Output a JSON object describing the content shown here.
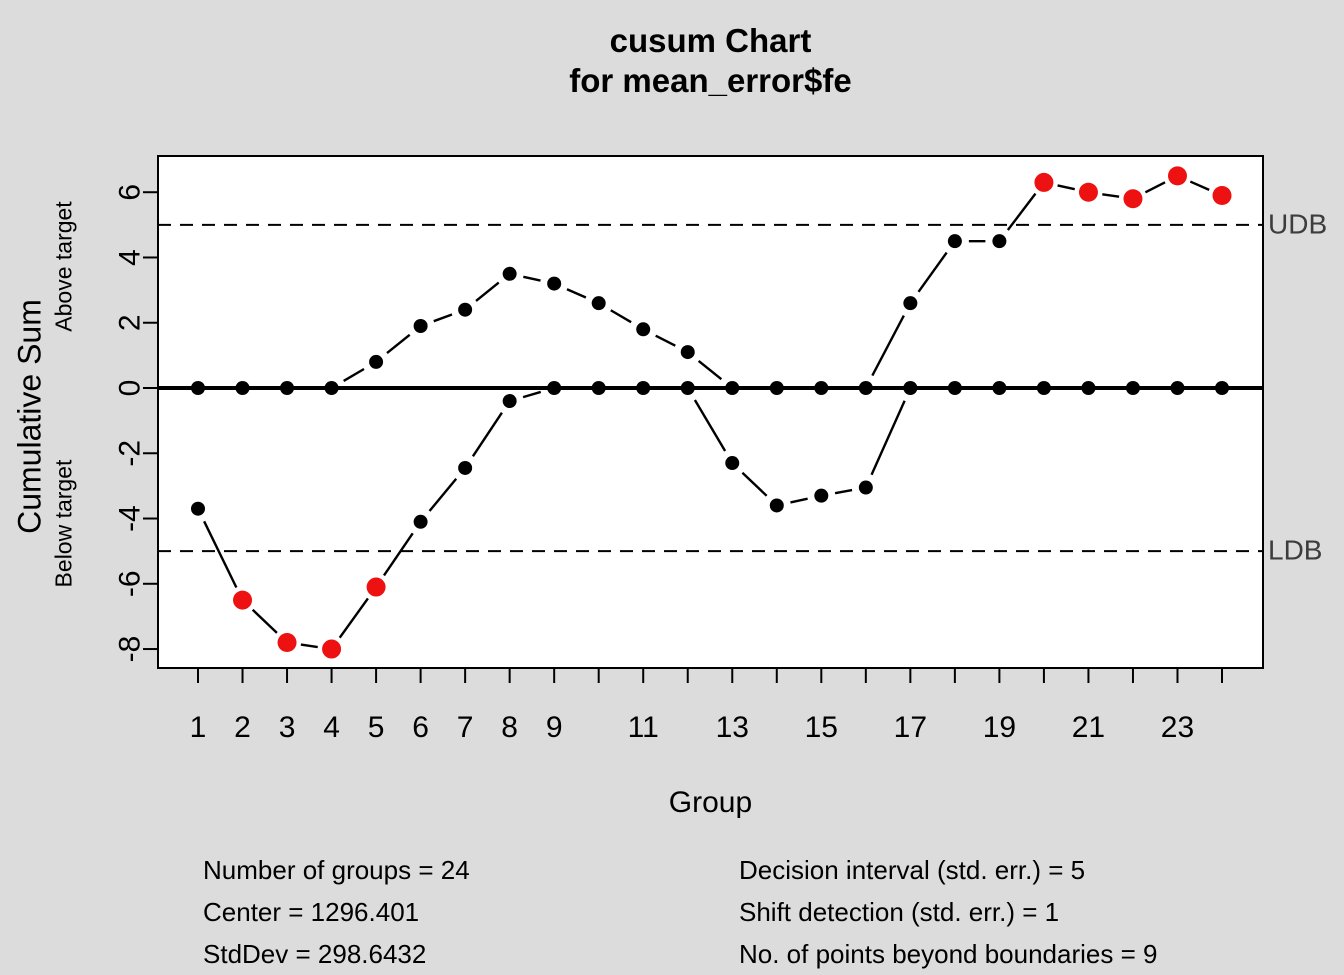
{
  "header": {
    "title": "cusum Chart",
    "subtitle": "for mean_error$fe"
  },
  "chart_data": {
    "type": "line",
    "title": "cusum Chart",
    "subtitle": "for mean_error$fe",
    "xlabel": "Group",
    "ylabel": "Cumulative Sum",
    "region_labels": {
      "above": "Above target",
      "below": "Below target"
    },
    "x": [
      1,
      2,
      3,
      4,
      5,
      6,
      7,
      8,
      9,
      10,
      11,
      12,
      13,
      14,
      15,
      16,
      17,
      18,
      19,
      20,
      21,
      22,
      23,
      24
    ],
    "x_tick_labels": [
      "1",
      "2",
      "3",
      "4",
      "5",
      "6",
      "7",
      "8",
      "9",
      "",
      "11",
      "",
      "13",
      "",
      "15",
      "",
      "17",
      "",
      "19",
      "",
      "21",
      "",
      "23",
      ""
    ],
    "y_ticks": [
      6,
      4,
      2,
      0,
      -2,
      -4,
      -6,
      -8
    ],
    "xlim": [
      0.08,
      24.92
    ],
    "ylim": [
      -8.6,
      7.1
    ],
    "grid": false,
    "series": [
      {
        "name": "Above target cusum",
        "key": "above",
        "values": [
          0,
          0,
          0,
          0,
          0.8,
          1.9,
          2.4,
          3.5,
          3.2,
          2.6,
          1.8,
          1.1,
          0,
          0,
          0,
          0,
          2.6,
          4.5,
          4.5,
          6.3,
          6.0,
          5.8,
          6.5,
          5.9
        ]
      },
      {
        "name": "Below target cusum",
        "key": "below",
        "values": [
          -3.7,
          -6.5,
          -7.8,
          -8.0,
          -6.1,
          -4.1,
          -2.45,
          -0.4,
          0,
          0,
          0,
          0,
          -2.3,
          -3.6,
          -3.3,
          -3.05,
          0,
          0,
          0,
          0,
          0,
          0,
          0,
          0
        ]
      }
    ],
    "beyond_boundaries": {
      "above": [
        20,
        21,
        22,
        23,
        24
      ],
      "below": [
        2,
        3,
        4,
        5
      ]
    },
    "boundaries": {
      "upper": {
        "value": 5,
        "label": "UDB"
      },
      "lower": {
        "value": -5,
        "label": "LDB"
      }
    },
    "center_line": 0,
    "colors": {
      "point": "#000000",
      "beyond_point": "#ee1111",
      "line": "#000000",
      "boundary_label": "#3d3d3d",
      "background": "#dcdcdc",
      "plot_background": "#ffffff"
    }
  },
  "stats": {
    "left": [
      "Number of groups = 24",
      "Center = 1296.401",
      "StdDev = 298.6432"
    ],
    "right": [
      "Decision interval (std. err.) = 5",
      "Shift detection (std. err.) = 1",
      "No. of points beyond boundaries = 9"
    ]
  }
}
